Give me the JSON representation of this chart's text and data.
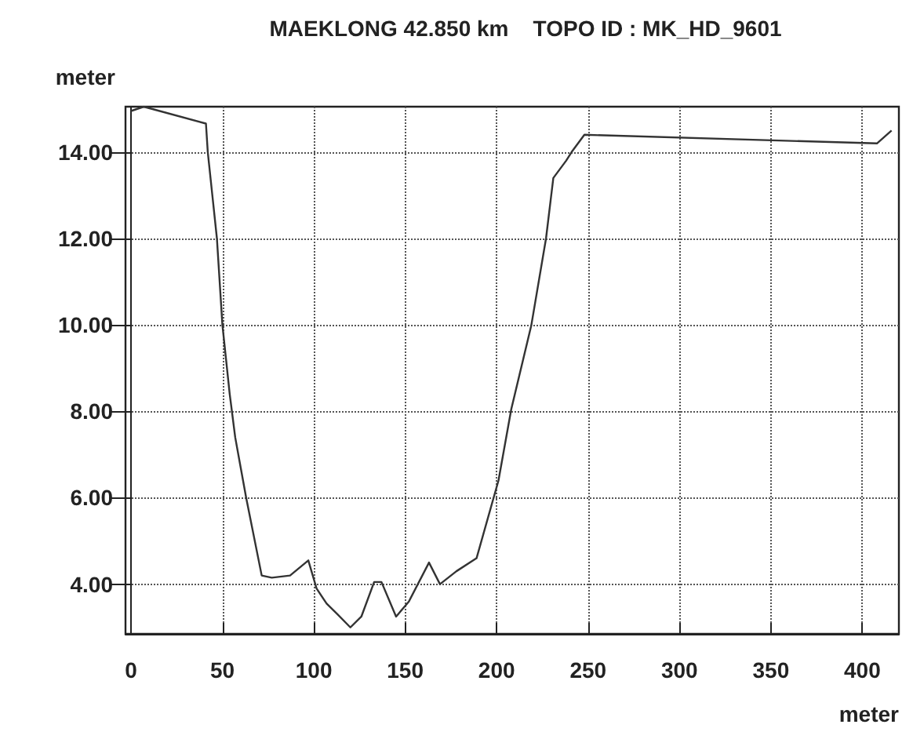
{
  "chart_data": {
    "type": "line",
    "title": "MAEKLONG 42.850 km    TOPO ID : MK_HD_9601",
    "xlabel": "meter",
    "ylabel": "meter",
    "x": [
      0,
      7,
      41,
      42,
      47,
      50,
      54,
      57,
      60,
      63,
      71.5,
      77,
      87,
      97,
      101.5,
      107,
      113,
      120,
      126,
      133,
      137,
      145,
      152,
      163,
      169,
      178,
      189,
      201,
      208,
      219,
      227,
      231,
      238,
      241,
      248,
      408,
      416
    ],
    "series": [
      {
        "color": "#333333",
        "values": [
          14.95,
          15.05,
          14.66,
          14.0,
          12.0,
          10.0,
          8.4,
          7.4,
          6.7,
          6.0,
          4.2,
          4.15,
          4.2,
          4.55,
          3.9,
          3.55,
          3.3,
          3.0,
          3.25,
          4.05,
          4.05,
          3.25,
          3.6,
          4.5,
          4.0,
          4.3,
          4.6,
          6.4,
          8.05,
          10.0,
          12.0,
          13.4,
          13.8,
          14.0,
          14.4,
          14.2,
          14.5
        ]
      }
    ],
    "xlim": [
      -3,
      420
    ],
    "xticks": [
      0,
      50,
      100,
      150,
      200,
      250,
      300,
      350,
      400
    ],
    "ylim": [
      2.85,
      15.05
    ],
    "yticks": [
      {
        "value": 4,
        "label": "4.00"
      },
      {
        "value": 6,
        "label": "6.00"
      },
      {
        "value": 8,
        "label": "8.00"
      },
      {
        "value": 10,
        "label": "10.00"
      },
      {
        "value": 12,
        "label": "12.00"
      },
      {
        "value": 14,
        "label": "14.00"
      }
    ],
    "grid": true,
    "marker": "none",
    "line_style": "solid"
  }
}
